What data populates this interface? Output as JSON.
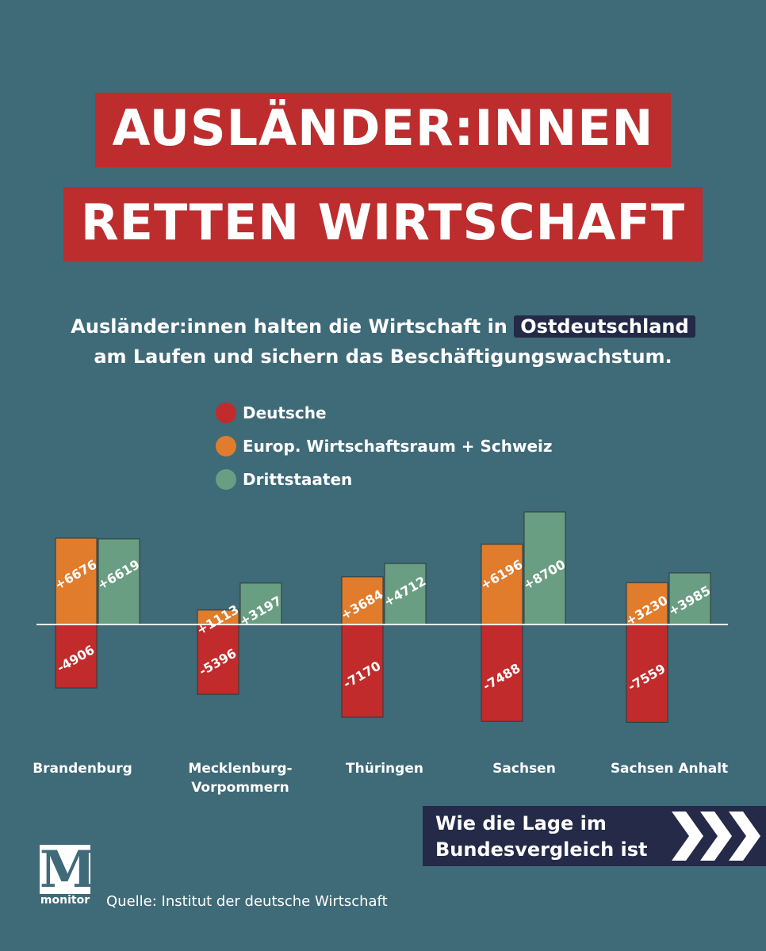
{
  "headline": {
    "line1": "AUSLÄNDER:INNEN",
    "line2": "RETTEN WIRTSCHAFT"
  },
  "subtitle": {
    "line1_prefix": "Ausländer:innen halten die Wirtschaft in ",
    "line1_highlight": "Ostdeutschland",
    "line2": "am Laufen und sichern das Beschäftigungswachstum."
  },
  "legend": [
    {
      "label": "Deutsche",
      "color": "#c12b2b"
    },
    {
      "label": "Europ. Wirtschaftsraum + Schweiz",
      "color": "#e07c2c"
    },
    {
      "label": "Drittstaaten",
      "color": "#6a9e82"
    }
  ],
  "chart_data": {
    "type": "bar",
    "categories": [
      "Brandenburg",
      "Mecklenburg-Vorpommern",
      "Thüringen",
      "Sachsen",
      "Sachsen Anhalt"
    ],
    "category_lines": [
      [
        "Brandenburg"
      ],
      [
        "Mecklenburg-",
        "Vorpommern"
      ],
      [
        "Thüringen"
      ],
      [
        "Sachsen"
      ],
      [
        "Sachsen Anhalt"
      ]
    ],
    "series": [
      {
        "name": "Deutsche",
        "values": [
          -4906,
          -5396,
          -7170,
          -7488,
          -7559
        ],
        "labels": [
          "-4906",
          "-5396",
          "-7170",
          "-7488",
          "-7559"
        ],
        "color": "#c12b2b"
      },
      {
        "name": "Europ. Wirtschaftsraum + Schweiz",
        "values": [
          6676,
          1113,
          3684,
          6196,
          3230
        ],
        "labels": [
          "+6676",
          "+1113",
          "+3684",
          "+6196",
          "+3230"
        ],
        "color": "#e07c2c"
      },
      {
        "name": "Drittstaaten",
        "values": [
          6619,
          3197,
          4712,
          8700,
          3985
        ],
        "labels": [
          "+6619",
          "+3197",
          "+4712",
          "+8700",
          "+3985"
        ],
        "color": "#6a9e82"
      }
    ],
    "title": "",
    "xlabel": "",
    "ylabel": "",
    "grid": false,
    "legend_position": "top"
  },
  "cta": {
    "line1": "Wie die Lage im",
    "line2": "Bundesvergleich ist"
  },
  "logo": {
    "letter": "M",
    "word": "monitor"
  },
  "source": "Quelle: Institut der deutsche Wirtschaft"
}
